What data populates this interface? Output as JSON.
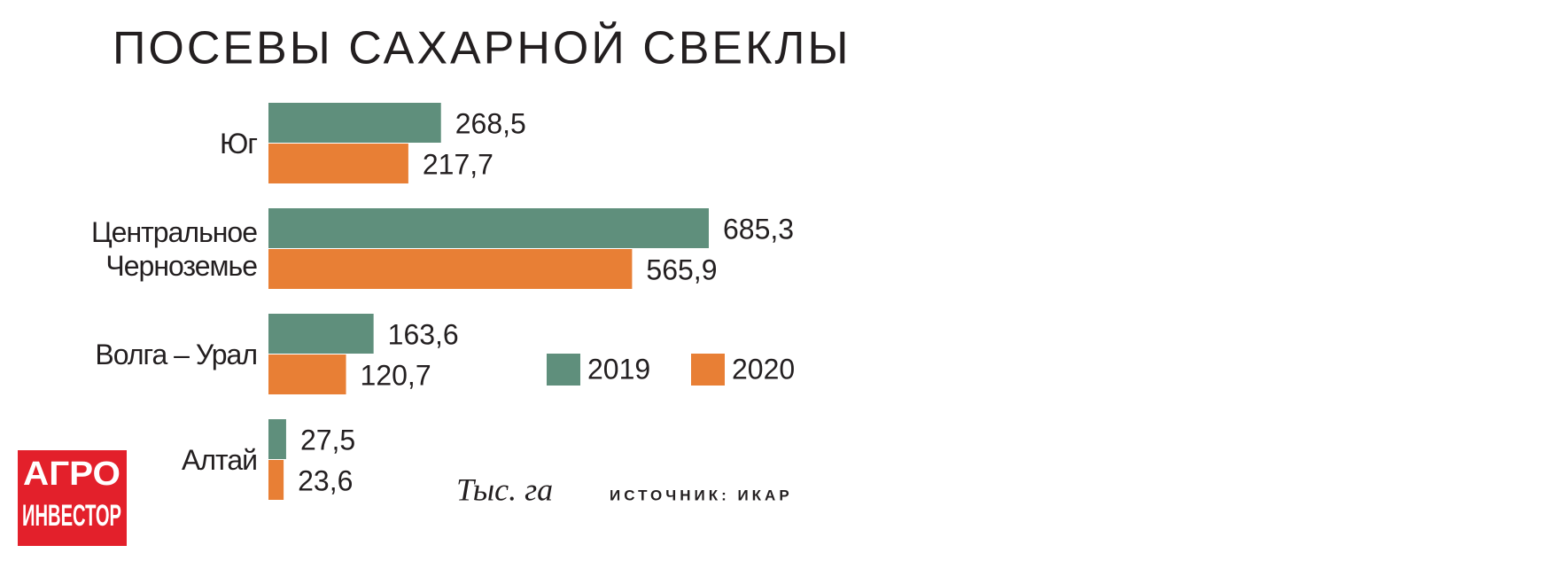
{
  "chart_data": {
    "type": "bar",
    "orientation": "horizontal",
    "title": "ПОСЕВЫ САХАРНОЙ СВЕКЛЫ",
    "categories": [
      "Юг",
      "Центральное Черноземье",
      "Волга – Урал",
      "Алтай"
    ],
    "series": [
      {
        "name": "2019",
        "color": "#5f8f7c",
        "values": [
          268.5,
          685.3,
          163.6,
          27.5
        ],
        "value_labels": [
          "268,5",
          "685,3",
          "163,6",
          "27,5"
        ]
      },
      {
        "name": "2020",
        "color": "#e87f35",
        "values": [
          217.7,
          565.9,
          120.7,
          23.6
        ],
        "value_labels": [
          "217,7",
          "565,9",
          "120,7",
          "23,6"
        ]
      }
    ],
    "unit": "Тыс. га",
    "source": "ИСТОЧНИК: ИКАР",
    "logo": {
      "line1": "АГРО",
      "line2": "ИНВЕСТОР"
    }
  }
}
